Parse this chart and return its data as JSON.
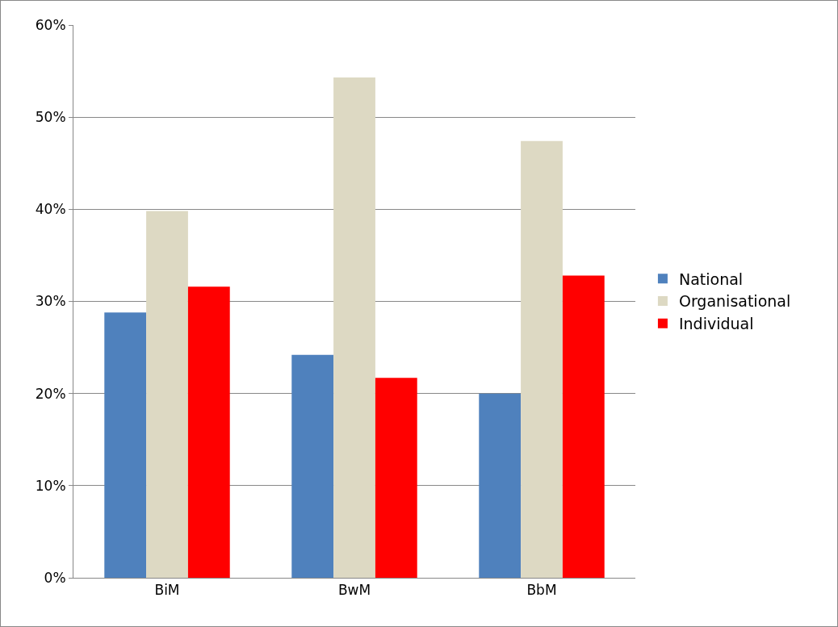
{
  "chart_data": {
    "type": "bar",
    "categories": [
      "BiM",
      "BwM",
      "BbM"
    ],
    "series": [
      {
        "name": "National",
        "color": "#4f81bd",
        "values": [
          28.8,
          24.2,
          20.0
        ]
      },
      {
        "name": "Organisational",
        "color": "#ddd9c3",
        "values": [
          39.8,
          54.3,
          47.4
        ]
      },
      {
        "name": "Individual",
        "color": "#ff0000",
        "values": [
          31.6,
          21.7,
          32.8
        ]
      }
    ],
    "ylim": [
      0,
      60
    ],
    "yticks": [
      {
        "value": 0,
        "label": "0%"
      },
      {
        "value": 10,
        "label": "10%"
      },
      {
        "value": 20,
        "label": "20%"
      },
      {
        "value": 30,
        "label": "30%"
      },
      {
        "value": 40,
        "label": "40%"
      },
      {
        "value": 50,
        "label": "50%"
      },
      {
        "value": 60,
        "label": "60%"
      }
    ],
    "grid": "y",
    "legend": "right"
  }
}
